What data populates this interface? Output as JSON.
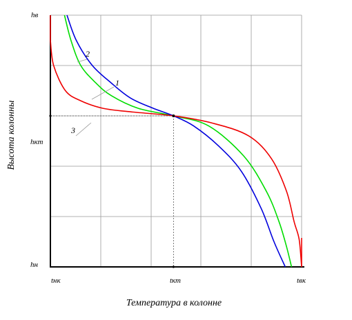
{
  "figure": {
    "y_axis_label": "Высота колонны",
    "x_axis_label": "Температура в колонне",
    "y_ticks": {
      "top": "hв",
      "middle": "hкт",
      "bottom": "hн"
    },
    "x_ticks": {
      "left": "tнк",
      "middle": "tкт",
      "right": "tвк"
    },
    "curve_labels": [
      "1",
      "2",
      "3"
    ],
    "colors": {
      "curve1": "#00dd00",
      "curve2": "#0000dd",
      "curve3": "#ee0000",
      "grid": "#999999",
      "axis": "#000000"
    }
  },
  "chart_data": {
    "type": "line",
    "x_range": [
      0,
      1
    ],
    "y_range": [
      0,
      1
    ],
    "grid": true,
    "series": [
      {
        "name": "1",
        "color": "#00dd00",
        "points": [
          [
            0.056,
            1.0
          ],
          [
            0.082,
            0.9
          ],
          [
            0.121,
            0.8
          ],
          [
            0.182,
            0.73
          ],
          [
            0.243,
            0.68
          ],
          [
            0.35,
            0.63
          ],
          [
            0.49,
            0.6
          ],
          [
            0.63,
            0.56
          ],
          [
            0.77,
            0.44
          ],
          [
            0.86,
            0.3
          ],
          [
            0.91,
            0.18
          ],
          [
            0.94,
            0.08
          ],
          [
            0.96,
            0.0
          ]
        ]
      },
      {
        "name": "2",
        "color": "#0000dd",
        "points": [
          [
            0.066,
            1.0
          ],
          [
            0.103,
            0.9
          ],
          [
            0.167,
            0.8
          ],
          [
            0.243,
            0.73
          ],
          [
            0.32,
            0.67
          ],
          [
            0.41,
            0.63
          ],
          [
            0.49,
            0.6
          ],
          [
            0.57,
            0.56
          ],
          [
            0.67,
            0.48
          ],
          [
            0.76,
            0.38
          ],
          [
            0.84,
            0.23
          ],
          [
            0.89,
            0.1
          ],
          [
            0.935,
            0.0
          ]
        ]
      },
      {
        "name": "3",
        "color": "#ee0000",
        "points": [
          [
            0.0,
            0.9
          ],
          [
            0.013,
            0.8
          ],
          [
            0.06,
            0.7
          ],
          [
            0.121,
            0.66
          ],
          [
            0.21,
            0.63
          ],
          [
            0.33,
            0.615
          ],
          [
            0.49,
            0.6
          ],
          [
            0.65,
            0.57
          ],
          [
            0.79,
            0.52
          ],
          [
            0.88,
            0.43
          ],
          [
            0.94,
            0.3
          ],
          [
            0.97,
            0.18
          ],
          [
            0.99,
            0.11
          ],
          [
            1.0,
            0.0
          ]
        ]
      }
    ]
  }
}
